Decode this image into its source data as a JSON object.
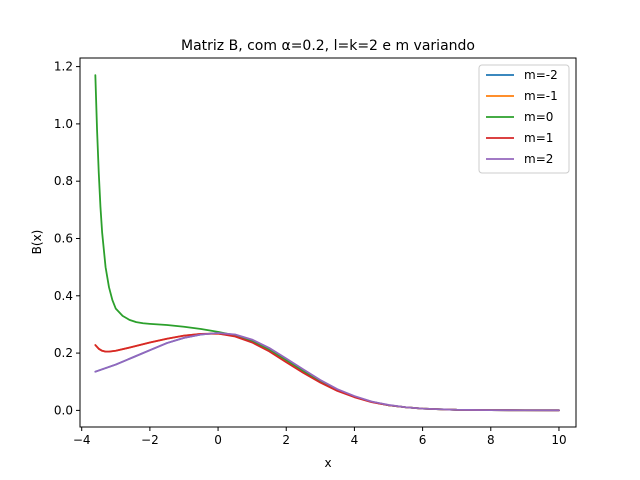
{
  "chart_data": {
    "type": "line",
    "title": "Matriz B, com α=0.2, l=k=2 e m variando",
    "xlabel": "x",
    "ylabel": "B(x)",
    "xlim": [
      -4.05,
      10.5
    ],
    "ylim": [
      -0.058,
      1.23
    ],
    "xticks": [
      -4,
      -2,
      0,
      2,
      4,
      6,
      8,
      10
    ],
    "xtick_labels": [
      "−4",
      "−2",
      "0",
      "2",
      "4",
      "6",
      "8",
      "10"
    ],
    "yticks": [
      0.0,
      0.2,
      0.4,
      0.6,
      0.8,
      1.0,
      1.2
    ],
    "ytick_labels": [
      "0.0",
      "0.2",
      "0.4",
      "0.6",
      "0.8",
      "1.0",
      "1.2"
    ],
    "grid": false,
    "legend_position": "top-right",
    "series": [
      {
        "name": "m=-2",
        "color": "#1f77b4",
        "x": [
          -3.6,
          -3.0,
          -2.5,
          -2.0,
          -1.5,
          -1.0,
          -0.5,
          0.0,
          0.5,
          1.0,
          1.5,
          2.0,
          2.5,
          3.0,
          3.5,
          4.0,
          4.5,
          5.0,
          5.5,
          6.0,
          6.5,
          7.0,
          8.0,
          9.0,
          10.0
        ],
        "y": [
          0.135,
          0.16,
          0.185,
          0.21,
          0.235,
          0.253,
          0.265,
          0.27,
          0.264,
          0.245,
          0.215,
          0.178,
          0.14,
          0.103,
          0.072,
          0.048,
          0.03,
          0.018,
          0.011,
          0.006,
          0.004,
          0.002,
          0.001,
          0.0005,
          0.0002
        ]
      },
      {
        "name": "m=-1",
        "color": "#ff7f0e",
        "x": [
          -3.6,
          -3.5,
          -3.4,
          -3.3,
          -3.2,
          -3.0,
          -2.5,
          -2.0,
          -1.5,
          -1.0,
          -0.5,
          0.0,
          0.5,
          1.0,
          1.5,
          2.0,
          2.5,
          3.0,
          3.5,
          4.0,
          4.5,
          5.0,
          5.5,
          6.0,
          6.5,
          7.0,
          8.0,
          9.0,
          10.0
        ],
        "y": [
          0.228,
          0.215,
          0.208,
          0.205,
          0.205,
          0.208,
          0.222,
          0.237,
          0.25,
          0.261,
          0.267,
          0.268,
          0.26,
          0.24,
          0.21,
          0.173,
          0.136,
          0.1,
          0.07,
          0.047,
          0.03,
          0.018,
          0.011,
          0.006,
          0.004,
          0.002,
          0.001,
          0.0005,
          0.0002
        ]
      },
      {
        "name": "m=0",
        "color": "#2ca02c",
        "x": [
          -3.6,
          -3.55,
          -3.5,
          -3.45,
          -3.4,
          -3.3,
          -3.2,
          -3.1,
          -3.0,
          -2.8,
          -2.6,
          -2.4,
          -2.2,
          -2.0,
          -1.5,
          -1.0,
          -0.5,
          0.0,
          0.5,
          1.0,
          1.5,
          2.0,
          2.5,
          3.0,
          3.5,
          4.0,
          4.5,
          5.0,
          5.5,
          6.0,
          6.5,
          7.0,
          8.0,
          9.0,
          10.0
        ],
        "y": [
          1.17,
          0.98,
          0.83,
          0.71,
          0.62,
          0.5,
          0.43,
          0.385,
          0.355,
          0.33,
          0.316,
          0.308,
          0.304,
          0.302,
          0.298,
          0.292,
          0.284,
          0.274,
          0.262,
          0.243,
          0.213,
          0.176,
          0.138,
          0.101,
          0.071,
          0.048,
          0.03,
          0.018,
          0.011,
          0.006,
          0.004,
          0.002,
          0.001,
          0.0005,
          0.0002
        ]
      },
      {
        "name": "m=1",
        "color": "#d62728",
        "x": [
          -3.6,
          -3.5,
          -3.4,
          -3.3,
          -3.2,
          -3.0,
          -2.5,
          -2.0,
          -1.5,
          -1.0,
          -0.5,
          0.0,
          0.5,
          1.0,
          1.5,
          2.0,
          2.5,
          3.0,
          3.5,
          4.0,
          4.5,
          5.0,
          5.5,
          6.0,
          6.5,
          7.0,
          8.0,
          9.0,
          10.0
        ],
        "y": [
          0.228,
          0.215,
          0.208,
          0.205,
          0.205,
          0.208,
          0.222,
          0.237,
          0.25,
          0.261,
          0.267,
          0.268,
          0.258,
          0.237,
          0.206,
          0.168,
          0.131,
          0.097,
          0.068,
          0.046,
          0.029,
          0.018,
          0.011,
          0.006,
          0.004,
          0.002,
          0.001,
          0.0005,
          0.0002
        ]
      },
      {
        "name": "m=2",
        "color": "#9467bd",
        "x": [
          -3.6,
          -3.0,
          -2.5,
          -2.0,
          -1.5,
          -1.0,
          -0.5,
          0.0,
          0.5,
          1.0,
          1.5,
          2.0,
          2.5,
          3.0,
          3.5,
          4.0,
          4.5,
          5.0,
          5.5,
          6.0,
          6.5,
          7.0,
          8.0,
          9.0,
          10.0
        ],
        "y": [
          0.135,
          0.16,
          0.185,
          0.21,
          0.235,
          0.253,
          0.265,
          0.27,
          0.265,
          0.247,
          0.218,
          0.181,
          0.143,
          0.106,
          0.074,
          0.05,
          0.031,
          0.019,
          0.011,
          0.006,
          0.004,
          0.002,
          0.001,
          0.0005,
          0.0002
        ]
      }
    ]
  }
}
